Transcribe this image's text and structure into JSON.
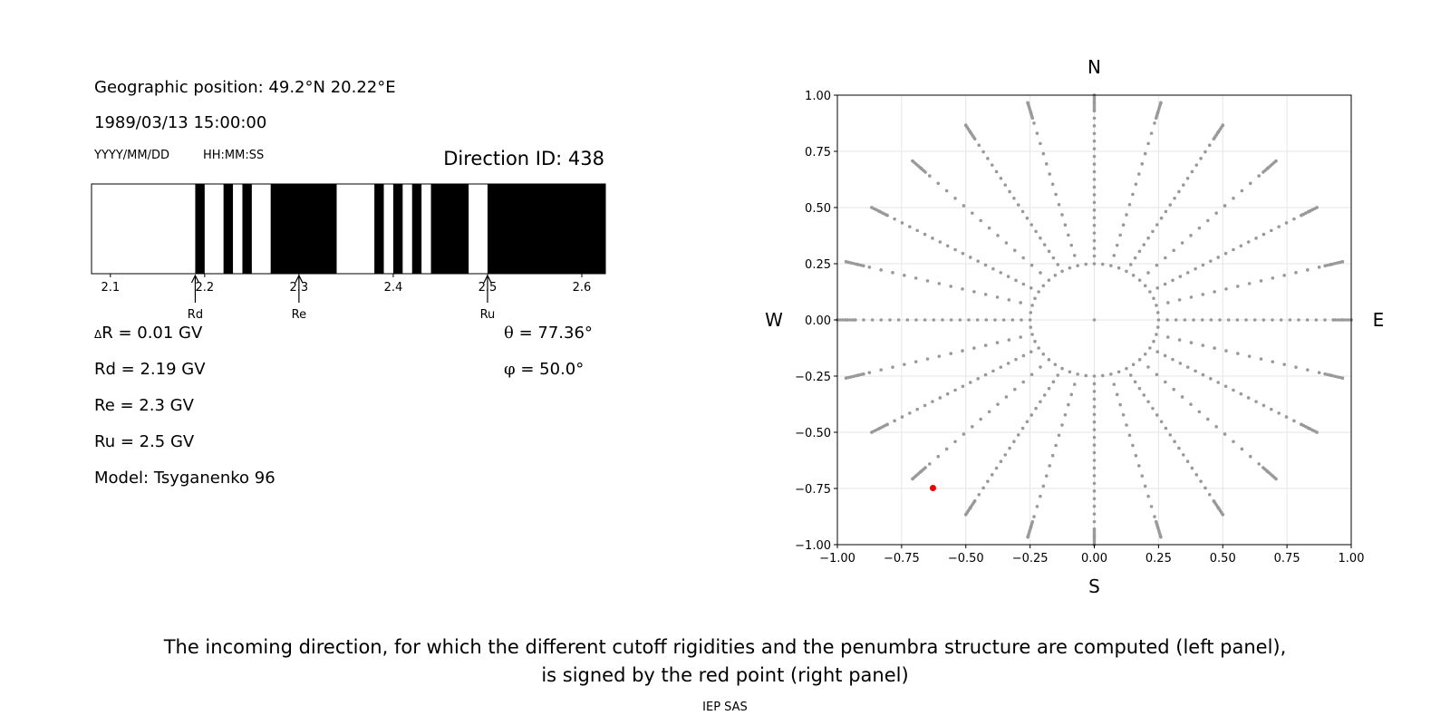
{
  "left_panel": {
    "geo_position": "Geographic position: 49.2°N 20.22°E",
    "datetime": "1989/03/13 15:00:00",
    "date_format": "YYYY/MM/DD",
    "time_format": "HH:MM:SS",
    "direction_id": "Direction ID: 438",
    "delta_r_symbol": "Δ",
    "delta_r": "R = 0.01 GV",
    "rd_value": "Rd = 2.19 GV",
    "re_value": "Re = 2.3 GV",
    "ru_value": "Ru = 2.5 GV",
    "model": "Model: Tsyganenko 96",
    "theta_symbol": "θ",
    "theta": " = 77.36°",
    "phi_symbol": "φ",
    "phi": " = 50.0°"
  },
  "chart_data": [
    {
      "type": "penumbra-bar",
      "x_range": [
        2.08,
        2.625
      ],
      "ticks": [
        2.1,
        2.2,
        2.3,
        2.4,
        2.5,
        2.6
      ],
      "tick_labels": [
        "2.1",
        "2.2",
        "2.3",
        "2.4",
        "2.5",
        "2.6"
      ],
      "forbidden_bands": [
        [
          2.19,
          2.2
        ],
        [
          2.22,
          2.23
        ],
        [
          2.24,
          2.25
        ],
        [
          2.27,
          2.34
        ],
        [
          2.38,
          2.39
        ],
        [
          2.4,
          2.41
        ],
        [
          2.42,
          2.43
        ],
        [
          2.44,
          2.48
        ],
        [
          2.5,
          2.625
        ]
      ],
      "markers": [
        {
          "label": "Rd",
          "value": 2.19
        },
        {
          "label": "Re",
          "value": 2.3
        },
        {
          "label": "Ru",
          "value": 2.5
        }
      ],
      "colors": {
        "forbidden": "#000000",
        "allowed": "#ffffff"
      }
    },
    {
      "type": "scatter",
      "xlim": [
        -1.0,
        1.0
      ],
      "ylim": [
        -1.0,
        1.0
      ],
      "xticks": [
        -1.0,
        -0.75,
        -0.5,
        -0.25,
        0.0,
        0.25,
        0.5,
        0.75,
        1.0
      ],
      "yticks": [
        -1.0,
        -0.75,
        -0.5,
        -0.25,
        0.0,
        0.25,
        0.5,
        0.75,
        1.0
      ],
      "xtick_labels": [
        "−1.00",
        "−0.75",
        "−0.50",
        "−0.25",
        "0.00",
        "0.25",
        "0.50",
        "0.75",
        "1.00"
      ],
      "ytick_labels": [
        "−1.00",
        "−0.75",
        "−0.50",
        "−0.25",
        "0.00",
        "0.25",
        "0.50",
        "0.75",
        "1.00"
      ],
      "grid": true,
      "compass": {
        "north": "N",
        "south": "S",
        "west": "W",
        "east": "E"
      },
      "grid_points": {
        "zenith_step_deg": 15,
        "zenith_max_deg": 90,
        "azimuth_step_deg": 30,
        "azimuth_start_deg": 0,
        "dense_ring_radii": [
          0.25
        ],
        "note_color": "#999999"
      },
      "highlight": {
        "x": -0.628,
        "y": -0.748,
        "color": "#ee0000"
      }
    }
  ],
  "caption": {
    "line1": "The incoming direction, for which the different cutoff rigidities and the penumbra structure are computed (left panel),",
    "line2": "is signed by the red point (right panel)"
  },
  "footer": "IEP SAS"
}
